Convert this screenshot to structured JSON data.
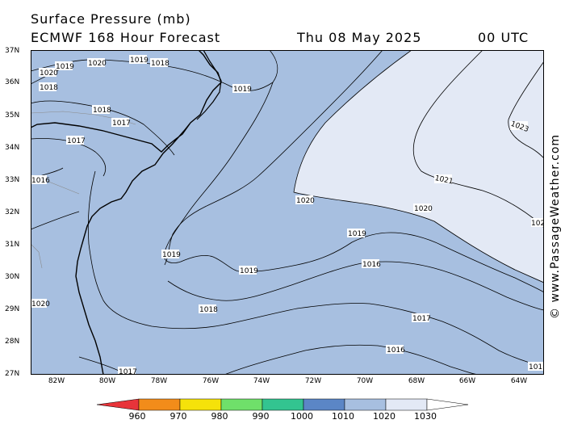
{
  "header": {
    "title": "Surface Pressure (mb)",
    "model": "ECMWF 168 Hour Forecast",
    "date": "Thu 08 May 2025",
    "time": "00 UTC"
  },
  "credit": "© www.PassageWeather.com",
  "axes": {
    "lat": [
      "37N",
      "36N",
      "35N",
      "34N",
      "33N",
      "32N",
      "31N",
      "30N",
      "29N",
      "28N",
      "27N"
    ],
    "lon": [
      "82W",
      "80W",
      "78W",
      "76W",
      "74W",
      "72W",
      "70W",
      "68W",
      "66W",
      "64W"
    ]
  },
  "isobar_labels": [
    "1019",
    "1020",
    "1019",
    "1018",
    "1018",
    "1019",
    "1020",
    "1018",
    "1017",
    "1017",
    "1016",
    "1020",
    "1019",
    "1019",
    "1019",
    "1018",
    "1017",
    "1016",
    "1016",
    "1017",
    "1020",
    "1021",
    "1023",
    "1020",
    "102",
    "101"
  ],
  "colorbar": {
    "labels": [
      "960",
      "970",
      "980",
      "990",
      "1000",
      "1010",
      "1020",
      "1030"
    ],
    "colors": [
      "#e8343a",
      "#f28c1a",
      "#f5e20a",
      "#6fe06a",
      "#33c490",
      "#5b86c6",
      "#a7bfe0",
      "#e3e9f5"
    ]
  },
  "colors": {
    "ocean_low": "#a7bfe0",
    "ocean_high": "#e3e9f5",
    "land": "#a7bfe0"
  }
}
